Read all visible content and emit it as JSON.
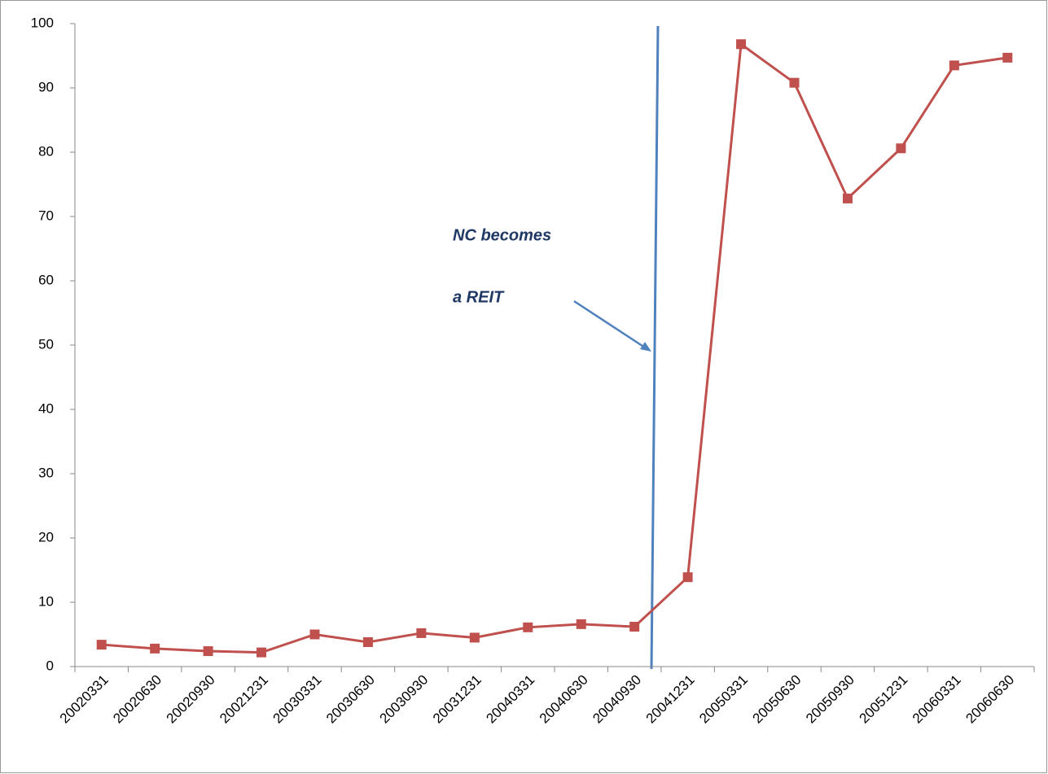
{
  "chart_data": {
    "type": "line",
    "categories": [
      "20020331",
      "20020630",
      "20020930",
      "20021231",
      "20030331",
      "20030630",
      "20030930",
      "20031231",
      "20040331",
      "20040630",
      "20040930",
      "20041231",
      "20050331",
      "20050630",
      "20050930",
      "20051231",
      "20060331",
      "20060630"
    ],
    "series": [
      {
        "color": "#c0504d",
        "values": [
          3.4,
          2.8,
          2.4,
          2.2,
          5.0,
          3.8,
          5.2,
          4.5,
          6.1,
          6.6,
          6.2,
          13.9,
          96.8,
          90.8,
          72.8,
          80.6,
          93.5,
          94.7
        ]
      }
    ],
    "ylim": [
      0,
      100
    ],
    "yticks": [
      0,
      10,
      20,
      30,
      40,
      50,
      60,
      70,
      80,
      90,
      100
    ],
    "grid": false,
    "annotation": [
      "NC becomes",
      "a REIT"
    ]
  }
}
